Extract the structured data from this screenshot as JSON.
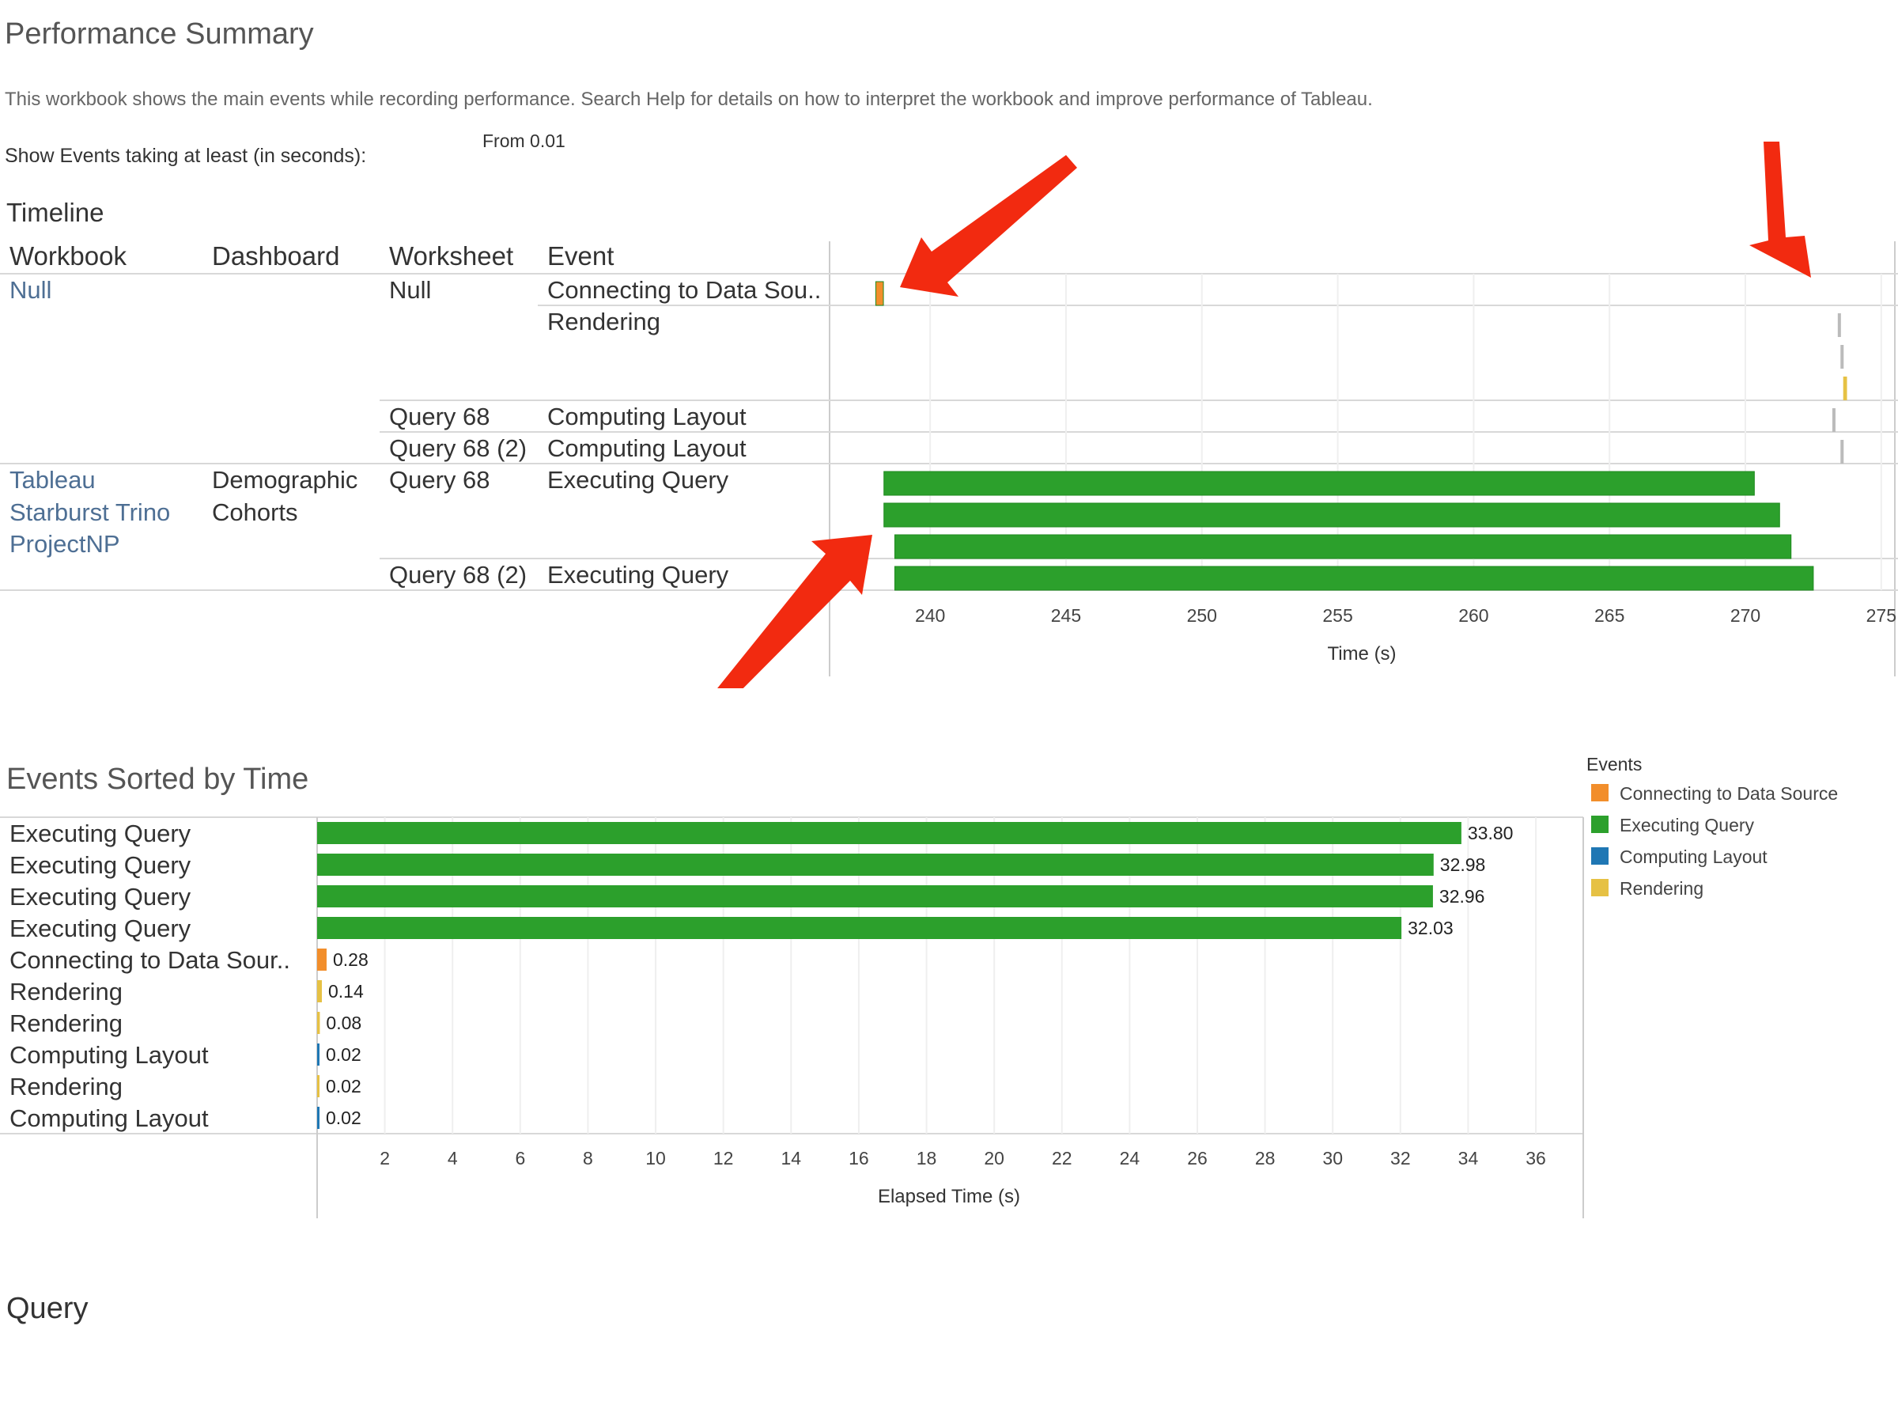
{
  "page": {
    "title": "Performance Summary",
    "description": "This workbook shows the main events while recording performance. Search Help for details on how to interpret the workbook and improve performance of Tableau.",
    "filter_label": "Show Events taking at least (in seconds):",
    "filter_value": "From 0.01"
  },
  "timeline": {
    "section_title": "Timeline",
    "columns": {
      "workbook": "Workbook",
      "dashboard": "Dashboard",
      "worksheet": "Worksheet",
      "event": "Event"
    },
    "cells": {
      "wb_null": "Null",
      "ws_null": "Null",
      "ev_connecting": "Connecting to Data Sou..",
      "ev_rendering": "Rendering",
      "ws_q68_a": "Query 68",
      "ev_layout_a": "Computing Layout",
      "ws_q68_2a": "Query 68 (2)",
      "ev_layout_b": "Computing Layout",
      "wb_tableau": "Tableau",
      "wb_starburst": "Starburst Trino",
      "wb_projectnp": "ProjectNP",
      "db_demographic": "Demographic",
      "db_cohorts": "Cohorts",
      "ws_q68_b": "Query 68",
      "ev_exec_a": "Executing Query",
      "ws_q68_2b": "Query 68 (2)",
      "ev_exec_b": "Executing Query"
    }
  },
  "sorted": {
    "section_title": "Events Sorted by Time"
  },
  "query": {
    "section_title": "Query"
  },
  "legend": {
    "title": "Events",
    "items": [
      {
        "label": "Connecting to Data Source",
        "color": "#f28e2b"
      },
      {
        "label": "Executing Query",
        "color": "#2ca02c"
      },
      {
        "label": "Computing Layout",
        "color": "#1f77b4"
      },
      {
        "label": "Rendering",
        "color": "#e6c144"
      }
    ]
  },
  "chart_data": [
    {
      "type": "bar",
      "name": "timeline",
      "orientation": "horizontal-gantt",
      "xlabel": "Time (s)",
      "xlim": [
        236.3,
        275.5
      ],
      "xticks": [
        240,
        245,
        250,
        255,
        260,
        265,
        270,
        275
      ],
      "bars": [
        {
          "event": "Connecting to Data Source",
          "start": 238.0,
          "end": 238.28,
          "color": "#f28e2b",
          "lane": 0
        },
        {
          "event": "Rendering",
          "start": 273.4,
          "end": 273.46,
          "color": "#bbbbbb",
          "lane": 1
        },
        {
          "event": "Rendering",
          "start": 273.5,
          "end": 273.56,
          "color": "#bbbbbb",
          "lane": 2
        },
        {
          "event": "Rendering",
          "start": 273.6,
          "end": 273.74,
          "color": "#e6c144",
          "lane": 3
        },
        {
          "event": "Computing Layout",
          "start": 273.2,
          "end": 273.26,
          "color": "#bbbbbb",
          "lane": 4
        },
        {
          "event": "Computing Layout",
          "start": 273.5,
          "end": 273.56,
          "color": "#bbbbbb",
          "lane": 5
        },
        {
          "event": "Executing Query",
          "start": 238.3,
          "end": 270.33,
          "color": "#2ca02c",
          "lane": 6
        },
        {
          "event": "Executing Query",
          "start": 238.3,
          "end": 271.26,
          "color": "#2ca02c",
          "lane": 7
        },
        {
          "event": "Executing Query",
          "start": 238.7,
          "end": 271.68,
          "color": "#2ca02c",
          "lane": 8
        },
        {
          "event": "Executing Query",
          "start": 238.7,
          "end": 272.5,
          "color": "#2ca02c",
          "lane": 9
        }
      ]
    },
    {
      "type": "bar",
      "name": "events_sorted_by_time",
      "orientation": "horizontal",
      "xlabel": "Elapsed Time (s)",
      "xlim": [
        0,
        37.4
      ],
      "xticks": [
        2,
        4,
        6,
        8,
        10,
        12,
        14,
        16,
        18,
        20,
        22,
        24,
        26,
        28,
        30,
        32,
        34,
        36
      ],
      "categories": [
        "Executing Query",
        "Executing Query",
        "Executing Query",
        "Executing Query",
        "Connecting to Data Sour..",
        "Rendering",
        "Rendering",
        "Computing Layout",
        "Rendering",
        "Computing Layout"
      ],
      "values": [
        33.8,
        32.98,
        32.96,
        32.03,
        0.28,
        0.14,
        0.08,
        0.02,
        0.02,
        0.02
      ],
      "value_labels": [
        "33.80",
        "32.98",
        "32.96",
        "32.03",
        "0.28",
        "0.14",
        "0.08",
        "0.02",
        "0.02",
        "0.02"
      ],
      "colors": [
        "#2ca02c",
        "#2ca02c",
        "#2ca02c",
        "#2ca02c",
        "#f28e2b",
        "#e6c144",
        "#e6c144",
        "#1f77b4",
        "#e6c144",
        "#1f77b4"
      ]
    }
  ]
}
